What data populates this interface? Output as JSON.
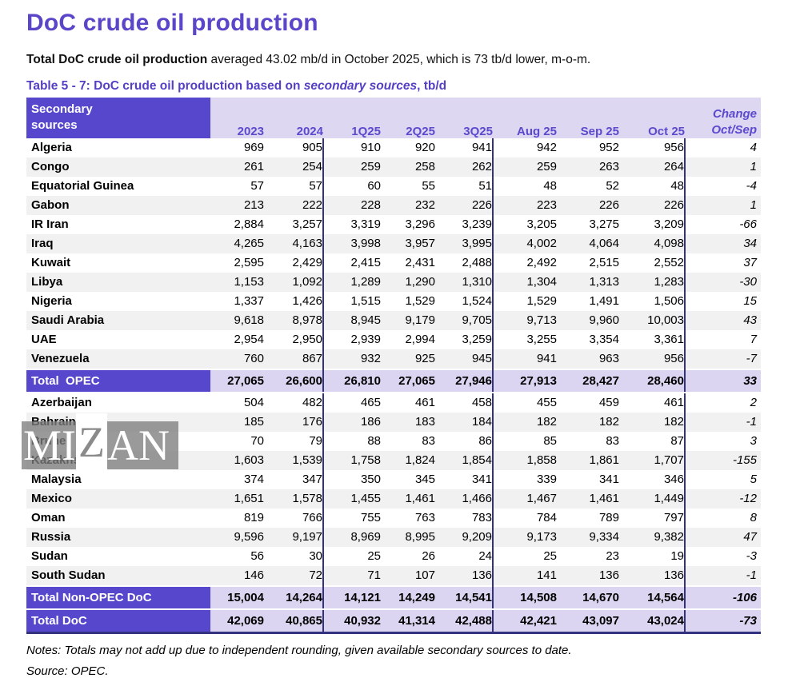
{
  "page": {
    "title": "DoC crude oil production",
    "subtitle_bold": "Total DoC crude oil production",
    "subtitle_rest": " averaged 43.02 mb/d in October 2025, which is 73 tb/d lower, m-o-m.",
    "caption_prefix": "Table 5 - 7: DoC crude oil production based on ",
    "caption_italic": "secondary sources",
    "caption_suffix": ", tb/d",
    "notes": "Notes: Totals may not add up due to independent rounding, given available secondary sources to date.",
    "source": "Source: OPEC."
  },
  "watermark": {
    "part1": "MI",
    "part2": "Z",
    "part3": "AN"
  },
  "colors": {
    "accent_purple": "#5747cd",
    "title_purple": "#5b45c9",
    "header_text_purple": "#5b4ace",
    "lavender": "#ddd7f2",
    "row_alt_gray": "#f1f1f1",
    "divider_navy": "#32327e"
  },
  "table": {
    "header": {
      "label_line1": "Secondary",
      "label_line2": "sources",
      "columns": [
        "2023",
        "2024",
        "1Q25",
        "2Q25",
        "3Q25",
        "Aug 25",
        "Sep 25",
        "Oct 25"
      ],
      "change_line1": "Change",
      "change_line2": "Oct/Sep"
    },
    "rows": [
      {
        "type": "data",
        "label": "Algeria",
        "values": [
          "969",
          "905",
          "910",
          "920",
          "941",
          "942",
          "952",
          "956"
        ],
        "change": "4"
      },
      {
        "type": "data",
        "label": "Congo",
        "values": [
          "261",
          "254",
          "259",
          "258",
          "262",
          "259",
          "263",
          "264"
        ],
        "change": "1"
      },
      {
        "type": "data",
        "label": "Equatorial Guinea",
        "values": [
          "57",
          "57",
          "60",
          "55",
          "51",
          "48",
          "52",
          "48"
        ],
        "change": "-4"
      },
      {
        "type": "data",
        "label": "Gabon",
        "values": [
          "213",
          "222",
          "228",
          "232",
          "226",
          "223",
          "226",
          "226"
        ],
        "change": "1"
      },
      {
        "type": "data",
        "label": "IR Iran",
        "values": [
          "2,884",
          "3,257",
          "3,319",
          "3,296",
          "3,239",
          "3,205",
          "3,275",
          "3,209"
        ],
        "change": "-66"
      },
      {
        "type": "data",
        "label": "Iraq",
        "values": [
          "4,265",
          "4,163",
          "3,998",
          "3,957",
          "3,995",
          "4,002",
          "4,064",
          "4,098"
        ],
        "change": "34"
      },
      {
        "type": "data",
        "label": "Kuwait",
        "values": [
          "2,595",
          "2,429",
          "2,415",
          "2,431",
          "2,488",
          "2,492",
          "2,515",
          "2,552"
        ],
        "change": "37"
      },
      {
        "type": "data",
        "label": "Libya",
        "values": [
          "1,153",
          "1,092",
          "1,289",
          "1,290",
          "1,310",
          "1,304",
          "1,313",
          "1,283"
        ],
        "change": "-30"
      },
      {
        "type": "data",
        "label": "Nigeria",
        "values": [
          "1,337",
          "1,426",
          "1,515",
          "1,529",
          "1,524",
          "1,529",
          "1,491",
          "1,506"
        ],
        "change": "15"
      },
      {
        "type": "data",
        "label": "Saudi Arabia",
        "values": [
          "9,618",
          "8,978",
          "8,945",
          "9,179",
          "9,705",
          "9,713",
          "9,960",
          "10,003"
        ],
        "change": "43"
      },
      {
        "type": "data",
        "label": "UAE",
        "values": [
          "2,954",
          "2,950",
          "2,939",
          "2,994",
          "3,259",
          "3,255",
          "3,354",
          "3,361"
        ],
        "change": "7"
      },
      {
        "type": "data",
        "label": "Venezuela",
        "values": [
          "760",
          "867",
          "932",
          "925",
          "945",
          "941",
          "963",
          "956"
        ],
        "change": "-7"
      },
      {
        "type": "total",
        "label": "Total  OPEC",
        "values": [
          "27,065",
          "26,600",
          "26,810",
          "27,065",
          "27,946",
          "27,913",
          "28,427",
          "28,460"
        ],
        "change": "33"
      },
      {
        "type": "data",
        "label": "Azerbaijan",
        "values": [
          "504",
          "482",
          "465",
          "461",
          "458",
          "455",
          "459",
          "461"
        ],
        "change": "2"
      },
      {
        "type": "data",
        "label": "Bahrain",
        "values": [
          "185",
          "176",
          "186",
          "183",
          "184",
          "182",
          "182",
          "182"
        ],
        "change": "-1"
      },
      {
        "type": "data",
        "label": "Brunei",
        "values": [
          "70",
          "79",
          "88",
          "83",
          "86",
          "85",
          "83",
          "87"
        ],
        "change": "3"
      },
      {
        "type": "data",
        "label": "Kazakhstan",
        "values": [
          "1,603",
          "1,539",
          "1,758",
          "1,824",
          "1,854",
          "1,858",
          "1,861",
          "1,707"
        ],
        "change": "-155"
      },
      {
        "type": "data",
        "label": "Malaysia",
        "values": [
          "374",
          "347",
          "350",
          "345",
          "341",
          "339",
          "341",
          "346"
        ],
        "change": "5"
      },
      {
        "type": "data",
        "label": "Mexico",
        "values": [
          "1,651",
          "1,578",
          "1,455",
          "1,461",
          "1,466",
          "1,467",
          "1,461",
          "1,449"
        ],
        "change": "-12"
      },
      {
        "type": "data",
        "label": "Oman",
        "values": [
          "819",
          "766",
          "755",
          "763",
          "783",
          "784",
          "789",
          "797"
        ],
        "change": "8"
      },
      {
        "type": "data",
        "label": "Russia",
        "values": [
          "9,596",
          "9,197",
          "8,969",
          "8,995",
          "9,209",
          "9,173",
          "9,334",
          "9,382"
        ],
        "change": "47"
      },
      {
        "type": "data",
        "label": "Sudan",
        "values": [
          "56",
          "30",
          "25",
          "26",
          "24",
          "25",
          "23",
          "19"
        ],
        "change": "-3"
      },
      {
        "type": "data",
        "label": "South Sudan",
        "values": [
          "146",
          "72",
          "71",
          "107",
          "136",
          "141",
          "136",
          "136"
        ],
        "change": "-1"
      },
      {
        "type": "total",
        "label": "Total Non-OPEC DoC",
        "values": [
          "15,004",
          "14,264",
          "14,121",
          "14,249",
          "14,541",
          "14,508",
          "14,670",
          "14,564"
        ],
        "change": "-106"
      },
      {
        "type": "total",
        "label": "Total DoC",
        "values": [
          "42,069",
          "40,865",
          "40,932",
          "41,314",
          "42,488",
          "42,421",
          "43,097",
          "43,024"
        ],
        "change": "-73"
      }
    ]
  }
}
